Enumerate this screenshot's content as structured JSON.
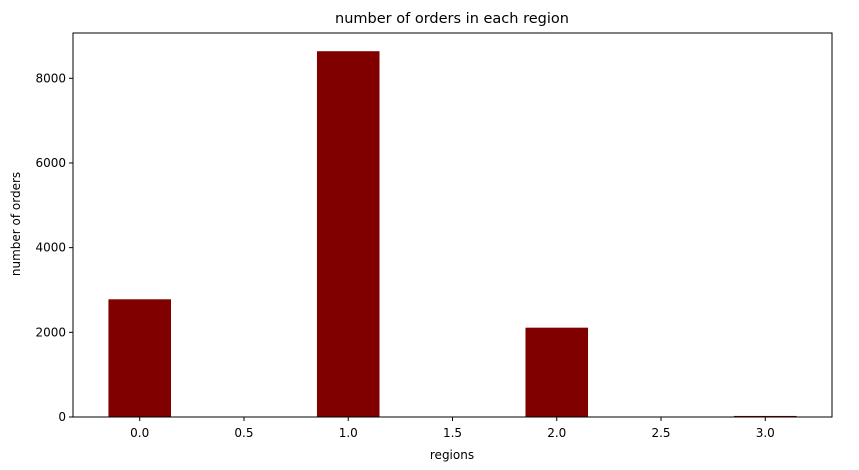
{
  "chart_data": {
    "type": "bar",
    "title": "number of orders in each region",
    "xlabel": "regions",
    "ylabel": "number of orders",
    "x": [
      0,
      1,
      2,
      3
    ],
    "values": [
      2780,
      8640,
      2110,
      25
    ],
    "bar_width": 0.3,
    "xlim": [
      -0.32,
      3.32
    ],
    "ylim": [
      0,
      9070
    ],
    "xticks": [
      "0.0",
      "0.5",
      "1.0",
      "1.5",
      "2.0",
      "2.5",
      "3.0"
    ],
    "xtick_values": [
      0,
      0.5,
      1,
      1.5,
      2,
      2.5,
      3
    ],
    "yticks": [
      "0",
      "2000",
      "4000",
      "6000",
      "8000"
    ],
    "ytick_values": [
      0,
      2000,
      4000,
      6000,
      8000
    ],
    "grid": false,
    "legend": "none",
    "bar_color": "#800000"
  }
}
